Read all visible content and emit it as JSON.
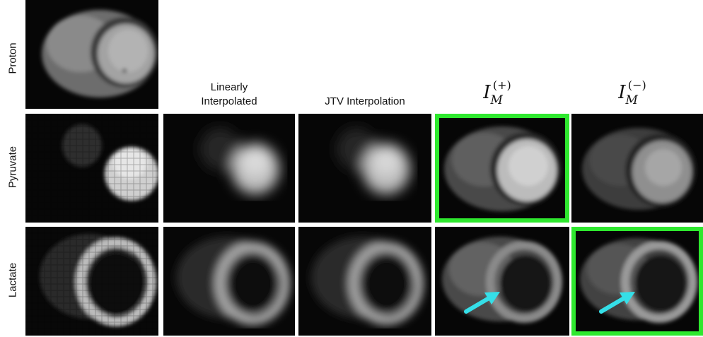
{
  "rows": [
    {
      "label": "Proton"
    },
    {
      "label": "Pyruvate"
    },
    {
      "label": "Lactate"
    }
  ],
  "columns": [
    {
      "label_line1": "Linearly",
      "label_line2": "Interpolated"
    },
    {
      "label": "JTV Interpolation"
    },
    {
      "math_base": "I",
      "math_sub": "M",
      "math_sup": "(+)"
    },
    {
      "math_base": "I",
      "math_sub": "M",
      "math_sup": "(−)"
    }
  ],
  "colors": {
    "highlight": "#2ee82e",
    "arrow": "#35dfe8"
  }
}
